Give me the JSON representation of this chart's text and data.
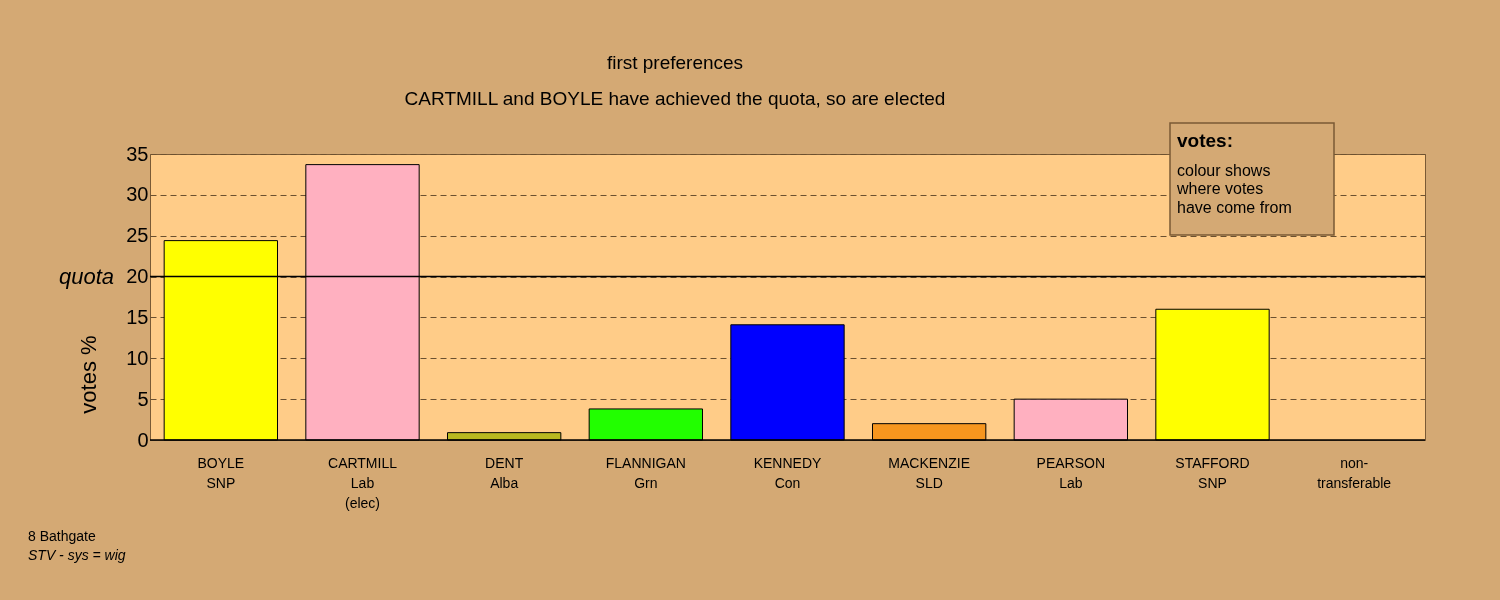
{
  "chart_data": {
    "type": "bar",
    "title": "first preferences",
    "subtitle": "CARTMILL and BOYLE have achieved the quota, so are elected",
    "ylabel": "votes %",
    "categories": [
      "BOYLE\nSNP",
      "CARTMILL\nLab\n(elec)",
      "DENT\nAlba",
      "FLANNIGAN\nGrn",
      "KENNEDY\nCon",
      "MACKENZIE\nSLD",
      "PEARSON\nLab",
      "STAFFORD\nSNP",
      "non-\ntransferable"
    ],
    "values": [
      24.4,
      33.7,
      0.9,
      3.8,
      14.1,
      2.0,
      5.0,
      16.0,
      0
    ],
    "colors": [
      "#ffff00",
      "#ffb0c0",
      "#b8b820",
      "#22ff00",
      "#0000ff",
      "#f7961e",
      "#ffb0c0",
      "#ffff00",
      "#808080"
    ],
    "ylim": [
      0,
      35
    ],
    "yticks": [
      0,
      5,
      10,
      15,
      20,
      25,
      30,
      35
    ],
    "grid": "y",
    "ref_lines": [
      {
        "axis": "y",
        "value": 20,
        "label": "quota",
        "color": "#000000"
      }
    ],
    "annotations": [
      "votes:",
      "colour shows\nwhere votes\nhave come from",
      "8 Bathgate",
      "STV - sys = wig"
    ]
  }
}
